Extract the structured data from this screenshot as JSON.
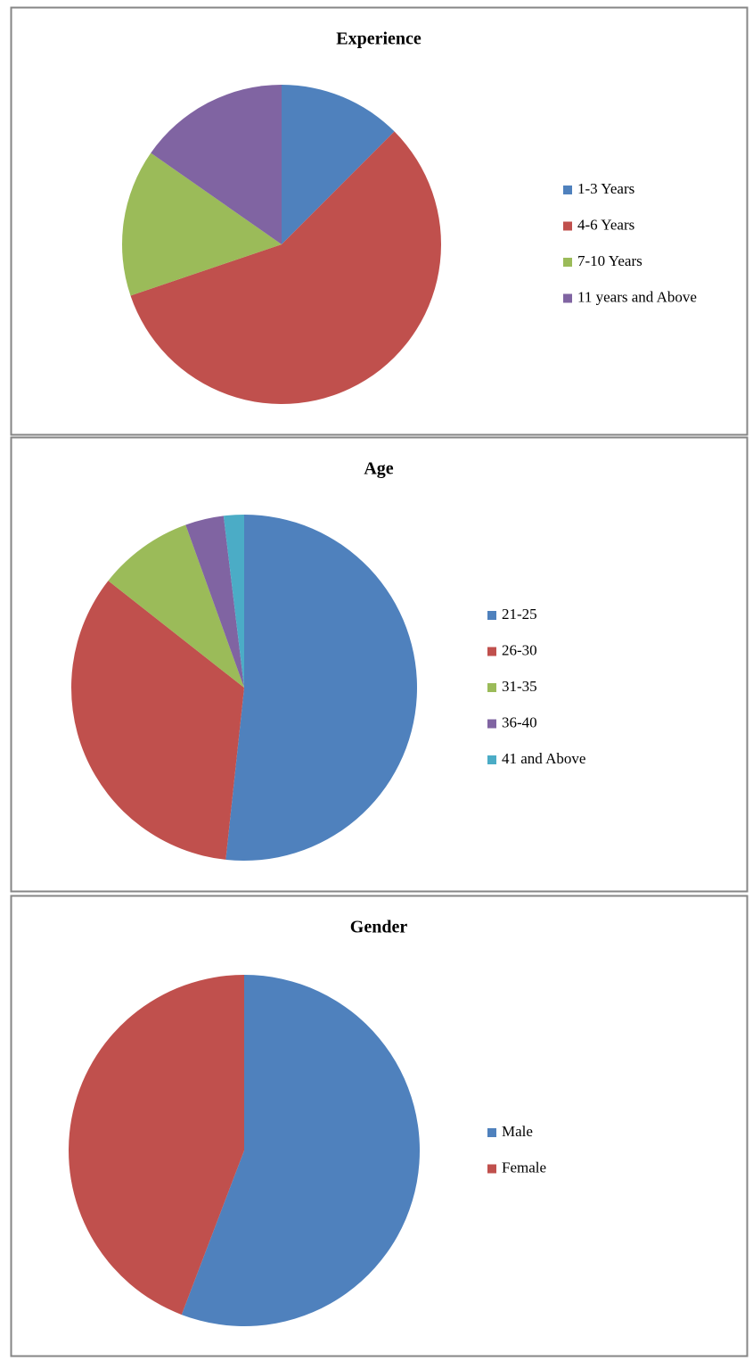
{
  "chart_data": [
    {
      "type": "pie",
      "title": "Experience",
      "categories": [
        "1-3 Years",
        "4-6 Years",
        "7-10 Years",
        "11 years and Above"
      ],
      "values": [
        12.5,
        57.3,
        14.9,
        15.3
      ],
      "colors": [
        "#4f81bd",
        "#c0504d",
        "#9bbb59",
        "#8064a2"
      ]
    },
    {
      "type": "pie",
      "title": "Age",
      "categories": [
        "21-25",
        "26-30",
        "31-35",
        "36-40",
        "41 and Above"
      ],
      "values": [
        51.7,
        33.9,
        8.9,
        3.6,
        1.9
      ],
      "colors": [
        "#4f81bd",
        "#c0504d",
        "#9bbb59",
        "#8064a2",
        "#4bacc6"
      ]
    },
    {
      "type": "pie",
      "title": "Gender",
      "categories": [
        "Male",
        "Female"
      ],
      "values": [
        55.8,
        44.2
      ],
      "colors": [
        "#4f81bd",
        "#c0504d"
      ]
    }
  ]
}
